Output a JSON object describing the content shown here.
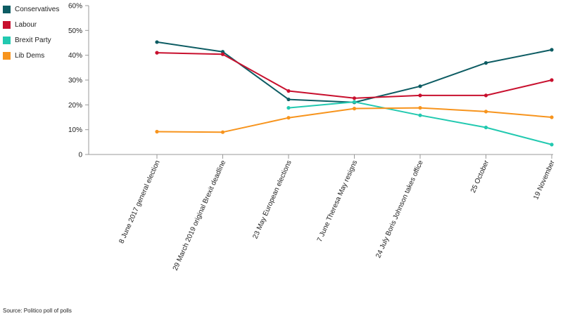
{
  "chart_data": {
    "type": "line",
    "categories": [
      "8 June 2017 general election",
      "29 March 2019 original Brexit deadline",
      "23 May European elections",
      "7 June Theresa May resigns",
      "24 July Boris Johnson takes office",
      "25 October",
      "19 November"
    ],
    "series": [
      {
        "name": "Conservatives",
        "color": "#0d5c63",
        "values": [
          45.3,
          41.4,
          22.2,
          21.0,
          27.5,
          36.9,
          42.2
        ]
      },
      {
        "name": "Labour",
        "color": "#c8102e",
        "values": [
          41.0,
          40.4,
          25.6,
          22.7,
          23.8,
          23.8,
          30.0
        ]
      },
      {
        "name": "Brexit Party",
        "color": "#22c9b0",
        "values": [
          null,
          null,
          18.8,
          21.2,
          15.8,
          10.9,
          4.0
        ]
      },
      {
        "name": "Lib Dems",
        "color": "#f7941d",
        "values": [
          9.2,
          9.0,
          14.8,
          18.5,
          18.8,
          17.3,
          15.0
        ]
      }
    ],
    "y_ticks": [
      "0",
      "10%",
      "20%",
      "30%",
      "40%",
      "50%",
      "60%"
    ],
    "ylim": [
      0,
      60
    ],
    "title": "",
    "xlabel": "",
    "ylabel": "",
    "grid": false,
    "legend_placement": "top-left"
  },
  "source": "Source: Politico poll of polls"
}
